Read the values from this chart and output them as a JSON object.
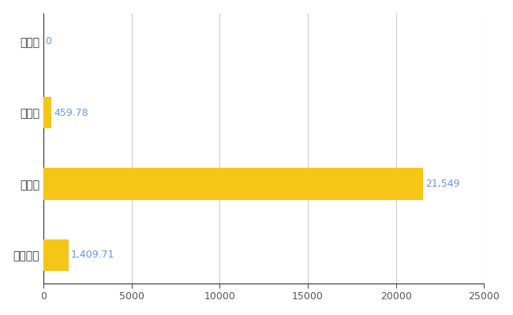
{
  "categories": [
    "全国平均",
    "県最大",
    "県平均",
    "大空町"
  ],
  "values": [
    1409.71,
    21549,
    459.78,
    0
  ],
  "bar_color": "#F5C518",
  "label_color": "#6495ED",
  "value_labels": [
    "1,409.71",
    "21,549",
    "459.78",
    "0"
  ],
  "xlim": [
    0,
    25000
  ],
  "xticks": [
    0,
    5000,
    10000,
    15000,
    20000,
    25000
  ],
  "xtick_labels": [
    "0",
    "5000",
    "10000",
    "15000",
    "20000",
    "25000"
  ],
  "grid_color": "#cccccc",
  "background_color": "#ffffff",
  "bar_height": 0.45,
  "label_fontsize": 9,
  "tick_fontsize": 9,
  "ytick_fontsize": 10
}
